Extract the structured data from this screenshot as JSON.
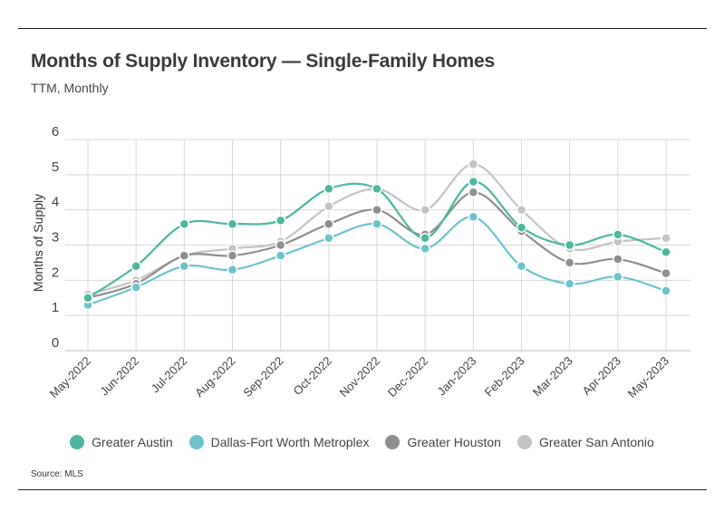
{
  "title": "Months of Supply Inventory — Single-Family Homes",
  "subtitle": "TTM, Monthly",
  "source": "Source:  MLS",
  "chart_data": {
    "type": "line",
    "ylabel": "Months of Supply",
    "ylim": [
      0,
      6
    ],
    "yticks": [
      "0",
      "1",
      "2",
      "3",
      "4",
      "5",
      "6"
    ],
    "categories": [
      "May-2022",
      "Jun-2022",
      "Jul-2022",
      "Aug-2022",
      "Sep-2022",
      "Oct-2022",
      "Nov-2022",
      "Dec-2022",
      "Jan-2023",
      "Feb-2023",
      "Mar-2023",
      "Apr-2023",
      "May-2023"
    ],
    "grid": true,
    "legend_position": "bottom",
    "series": [
      {
        "name": "Greater Austin",
        "color": "#4cb8a0",
        "values": [
          1.5,
          2.4,
          3.6,
          3.6,
          3.7,
          4.6,
          4.6,
          3.2,
          4.8,
          3.5,
          3.0,
          3.3,
          2.8
        ]
      },
      {
        "name": "Dallas-Fort Worth Metroplex",
        "color": "#6bc4cc",
        "values": [
          1.3,
          1.8,
          2.4,
          2.3,
          2.7,
          3.2,
          3.6,
          2.9,
          3.8,
          2.4,
          1.9,
          2.1,
          1.7
        ]
      },
      {
        "name": "Greater Houston",
        "color": "#8e8e8e",
        "values": [
          1.5,
          1.9,
          2.7,
          2.7,
          3.0,
          3.6,
          4.0,
          3.3,
          4.5,
          3.4,
          2.5,
          2.6,
          2.2
        ]
      },
      {
        "name": "Greater San Antonio",
        "color": "#c4c4c4",
        "values": [
          1.6,
          2.0,
          2.7,
          2.9,
          3.1,
          4.1,
          4.6,
          4.0,
          5.3,
          4.0,
          2.9,
          3.1,
          3.2
        ]
      }
    ]
  }
}
